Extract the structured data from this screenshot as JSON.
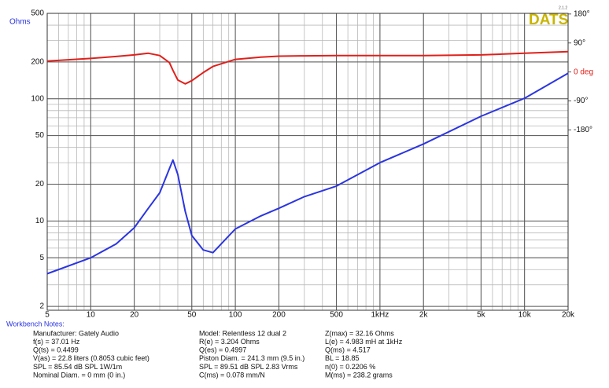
{
  "chart_data": {
    "type": "line",
    "ylabel": "Ohms",
    "x": [
      5,
      10,
      15,
      20,
      25,
      30,
      35,
      37,
      40,
      45,
      50,
      60,
      70,
      100,
      150,
      200,
      300,
      500,
      1000,
      2000,
      5000,
      10000,
      20000
    ],
    "series": [
      {
        "color": "#2b35e0",
        "values": [
          3.7,
          5.0,
          6.5,
          8.8,
          12.7,
          17,
          26.8,
          31.5,
          24,
          12,
          7.6,
          5.8,
          5.5,
          8.6,
          11,
          12.7,
          15.8,
          19.3,
          30,
          42.7,
          72,
          101,
          162
        ]
      },
      {
        "color": "#e0201b",
        "axis": "y2",
        "values": [
          34,
          42,
          48,
          53,
          58,
          51,
          29,
          5,
          -25,
          -37,
          -27,
          -2,
          17,
          39,
          46,
          49,
          50,
          51,
          51,
          51,
          53,
          58,
          63
        ]
      }
    ],
    "xscale": "log",
    "yscale": "log",
    "xlim": [
      5,
      20000
    ],
    "ylim": [
      1.86,
      500
    ],
    "y2lim": [
      -740,
      182
    ],
    "xticks": [
      5,
      10,
      20,
      50,
      100,
      200,
      500,
      {
        "value": 1000,
        "label": "1kHz"
      },
      {
        "value": 2000,
        "label": "2k"
      },
      {
        "value": 5000,
        "label": "5k"
      },
      {
        "value": 10000,
        "label": "10k"
      },
      {
        "value": 20000,
        "label": "20k"
      }
    ],
    "yticks": [
      2,
      5,
      10,
      20,
      50,
      100,
      200,
      500
    ],
    "y2ticks": [
      {
        "value": 180,
        "label": "180°"
      },
      {
        "value": 90,
        "label": "90°"
      },
      {
        "value": 0,
        "label": "0 deg"
      },
      {
        "value": -90,
        "label": "-90°"
      },
      {
        "value": -180,
        "label": "-180°"
      }
    ],
    "grid": true,
    "minor_grid": true
  },
  "logo": {
    "text": "DATS",
    "version": "2.1.2"
  },
  "workbench_notes": {
    "title": "Workbench Notes:",
    "columns": [
      [
        "Manufacturer: Gately Audio",
        "f(s) = 37.01 Hz",
        "Q(ts) = 0.4499",
        "V(as) = 22.8 liters  (0.8053 cubic feet)",
        "SPL = 85.54 dB SPL 1W/1m",
        "Nominal Diam. = 0 mm (0 in.)"
      ],
      [
        "Model: Relentless 12 dual 2",
        "R(e) = 3.204 Ohms",
        "Q(es) = 0.4997",
        "Piston Diam. = 241.3 mm (9.5 in.)",
        "SPL = 89.51 dB SPL 2.83 Vrms",
        "C(ms) = 0.078 mm/N"
      ],
      [
        "Z(max) = 32.16 Ohms",
        "L(e) = 4.983 mH at 1kHz",
        "Q(ms) = 4.517",
        "BL = 18.85",
        "n(0) = 0.2206 %",
        "M(ms) = 238.2 grams"
      ]
    ]
  }
}
